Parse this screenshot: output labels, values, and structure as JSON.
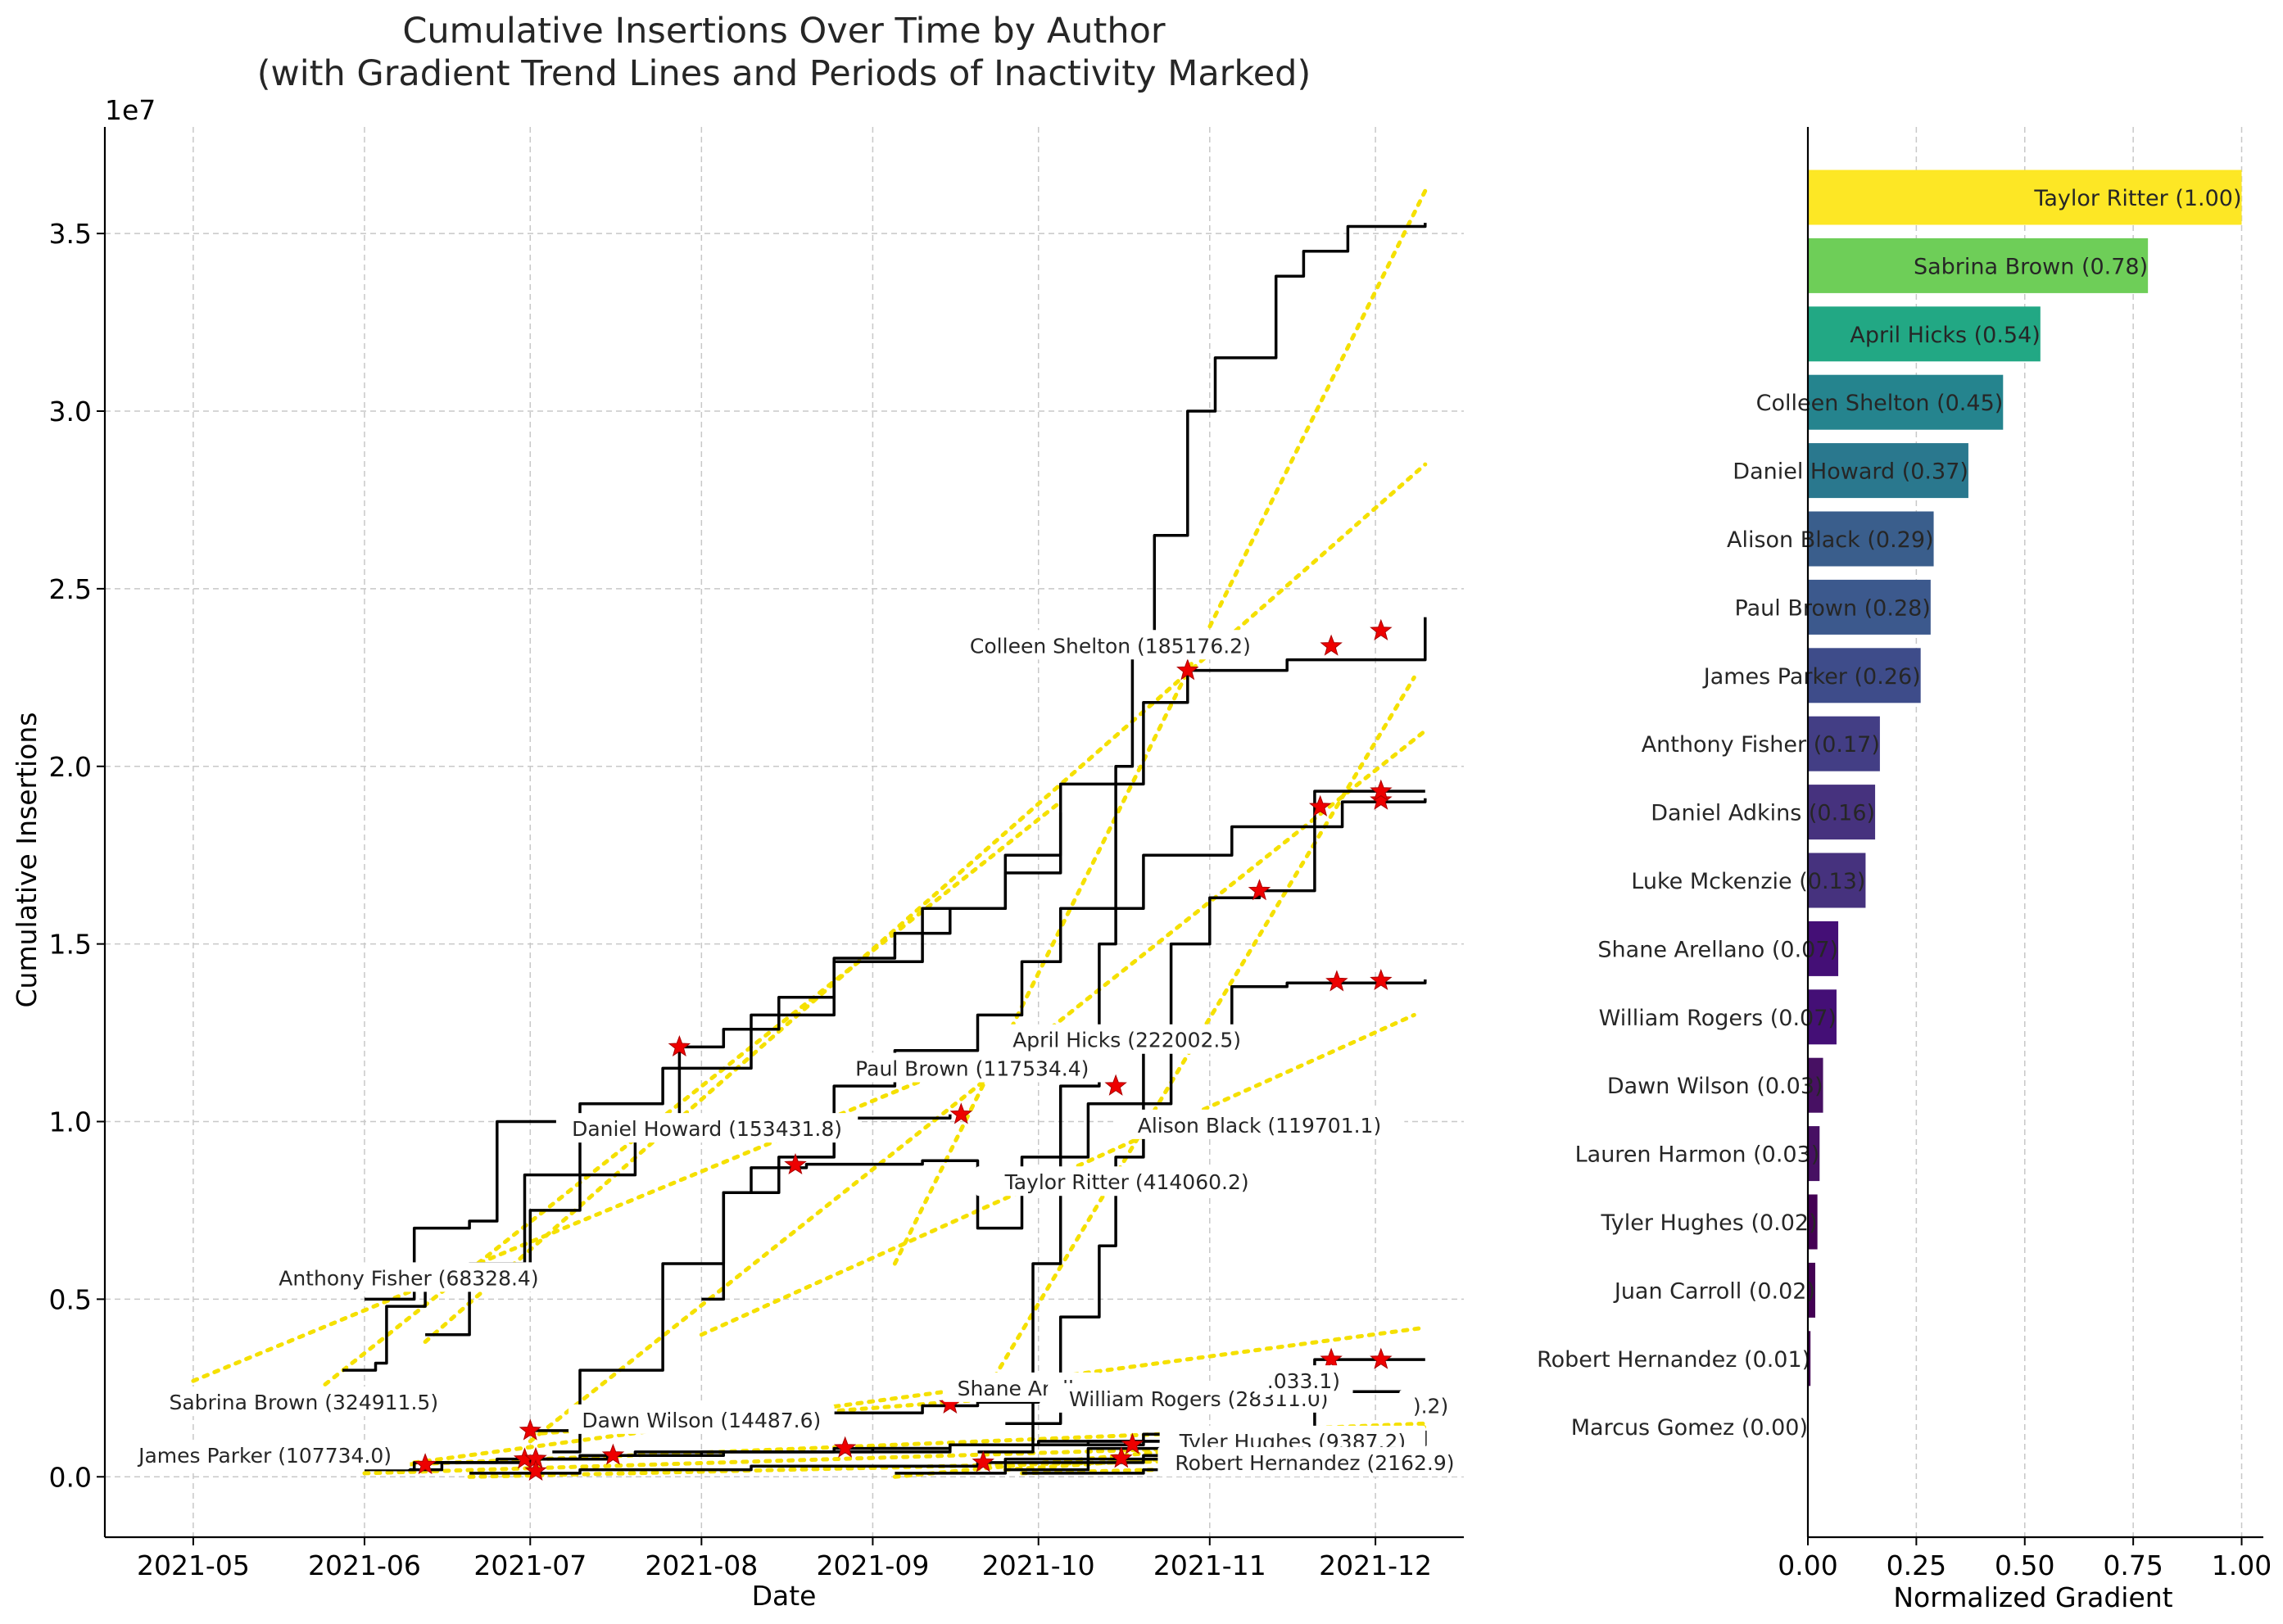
{
  "chart_data": [
    {
      "type": "line",
      "title": "Cumulative Insertions Over Time by Author",
      "subtitle": "(with Gradient Trend Lines and Periods of Inactivity Marked)",
      "xlabel": "Date",
      "ylabel": "Cumulative Insertions",
      "y_multiplier_label": "1e7",
      "xlim": [
        "2021-04-15",
        "2021-12-17"
      ],
      "ylim": [
        -0.17,
        3.8
      ],
      "x_ticks": [
        "2021-05-01",
        "2021-06-01",
        "2021-07-01",
        "2021-08-01",
        "2021-09-01",
        "2021-10-01",
        "2021-11-01",
        "2021-12-01"
      ],
      "x_tick_labels": [
        "2021-05",
        "2021-06",
        "2021-07",
        "2021-08",
        "2021-09",
        "2021-10",
        "2021-11",
        "2021-12"
      ],
      "y_ticks": [
        0.0,
        0.5,
        1.0,
        1.5,
        2.0,
        2.5,
        3.0,
        3.5
      ],
      "y_tick_labels": [
        "0.0",
        "0.5",
        "1.0",
        "1.5",
        "2.0",
        "2.5",
        "3.0",
        "3.5"
      ],
      "grid": true,
      "line_color": "#000000",
      "trend_color": "#f5e000",
      "marker_color": "#ee0000",
      "series": [
        {
          "x": [
            "2021-09-20",
            "2021-09-30",
            "2021-10-05",
            "2021-10-12",
            "2021-10-15",
            "2021-10-18",
            "2021-10-22",
            "2021-10-28",
            "2021-11-02",
            "2021-11-10",
            "2021-11-13",
            "2021-11-18",
            "2021-11-26",
            "2021-12-10"
          ],
          "y": [
            0.07,
            0.6,
            1.1,
            1.5,
            2.0,
            2.32,
            2.65,
            3.0,
            3.15,
            3.15,
            3.38,
            3.45,
            3.52,
            3.53
          ],
          "trend": {
            "x": [
              "2021-09-05",
              "2021-12-10"
            ],
            "y": [
              0.6,
              3.62
            ]
          },
          "inactive": []
        },
        {
          "x": [
            "2021-06-12",
            "2021-06-20",
            "2021-06-30",
            "2021-07-10",
            "2021-07-25",
            "2021-08-10",
            "2021-08-25",
            "2021-09-10",
            "2021-09-25",
            "2021-10-05",
            "2021-10-20",
            "2021-10-28",
            "2021-11-15",
            "2021-12-10"
          ],
          "y": [
            0.4,
            0.6,
            0.85,
            1.05,
            1.15,
            1.3,
            1.45,
            1.6,
            1.75,
            1.95,
            2.18,
            2.27,
            2.3,
            2.42
          ],
          "trend": {
            "x": [
              "2021-06-12",
              "2021-12-10"
            ],
            "y": [
              0.38,
              2.85
            ]
          },
          "inactive": [
            "2021-10-28",
            "2021-11-23",
            "2021-12-02"
          ]
        },
        {
          "x": [
            "2021-05-28",
            "2021-06-03",
            "2021-06-05",
            "2021-06-12",
            "2021-06-20",
            "2021-07-01",
            "2021-07-10",
            "2021-07-20",
            "2021-07-28",
            "2021-08-05",
            "2021-08-15",
            "2021-08-25",
            "2021-09-05",
            "2021-09-15",
            "2021-09-25",
            "2021-10-05"
          ],
          "y": [
            0.3,
            0.32,
            0.48,
            0.53,
            0.56,
            0.75,
            0.85,
            0.95,
            1.21,
            1.26,
            1.35,
            1.46,
            1.53,
            1.6,
            1.7,
            1.87
          ],
          "trend": {
            "x": [
              "2021-05-20",
              "2021-10-05"
            ],
            "y": [
              0.2,
              1.9
            ]
          },
          "inactive": [
            "2021-07-28"
          ]
        },
        {
          "x": [
            "2021-06-01",
            "2021-06-10",
            "2021-06-20",
            "2021-06-25",
            "2021-07-15",
            "2021-08-10",
            "2021-09-15"
          ],
          "y": [
            0.5,
            0.7,
            0.72,
            1.0,
            1.0,
            1.01,
            1.02
          ],
          "trend": {
            "x": [
              "2021-05-01",
              "2021-09-20"
            ],
            "y": [
              0.27,
              1.18
            ]
          },
          "inactive": [
            "2021-09-17"
          ]
        },
        {
          "x": [
            "2021-07-05",
            "2021-07-10",
            "2021-07-25",
            "2021-08-05",
            "2021-08-15",
            "2021-08-25",
            "2021-09-05",
            "2021-09-20",
            "2021-09-28",
            "2021-10-05",
            "2021-10-20",
            "2021-11-05",
            "2021-11-25",
            "2021-12-10"
          ],
          "y": [
            0.07,
            0.3,
            0.6,
            0.8,
            0.9,
            1.1,
            1.2,
            1.3,
            1.45,
            1.6,
            1.75,
            1.83,
            1.9,
            1.91
          ],
          "trend": {
            "x": [
              "2021-07-01",
              "2021-12-10"
            ],
            "y": [
              0.1,
              2.1
            ]
          },
          "inactive": [
            "2021-11-21",
            "2021-12-02"
          ]
        },
        {
          "x": [
            "2021-09-25",
            "2021-10-05",
            "2021-10-12",
            "2021-10-15",
            "2021-10-20",
            "2021-10-25",
            "2021-11-01",
            "2021-11-10",
            "2021-11-20",
            "2021-12-10"
          ],
          "y": [
            0.15,
            0.45,
            0.65,
            0.9,
            1.2,
            1.5,
            1.63,
            1.65,
            1.93,
            1.93
          ],
          "trend": {
            "x": [
              "2021-09-23",
              "2021-12-08"
            ],
            "y": [
              0.28,
              2.25
            ]
          },
          "inactive": [
            "2021-11-10",
            "2021-12-02"
          ]
        },
        {
          "x": [
            "2021-08-01",
            "2021-08-05",
            "2021-08-10",
            "2021-08-20",
            "2021-09-10",
            "2021-09-20",
            "2021-09-28",
            "2021-10-10",
            "2021-10-25",
            "2021-11-05",
            "2021-11-15",
            "2021-12-10"
          ],
          "y": [
            0.5,
            0.8,
            0.87,
            0.88,
            0.89,
            0.7,
            0.9,
            1.05,
            1.2,
            1.38,
            1.39,
            1.4
          ],
          "trend": {
            "x": [
              "2021-08-01",
              "2021-12-08"
            ],
            "y": [
              0.4,
              1.3
            ]
          },
          "inactive": [
            "2021-08-18",
            "2021-10-15",
            "2021-11-24",
            "2021-12-02"
          ]
        },
        {
          "x": [
            "2021-06-05",
            "2021-06-15",
            "2021-07-01",
            "2021-07-10",
            "2021-07-20",
            "2021-08-10",
            "2021-09-15",
            "2021-10-20",
            "2021-11-20",
            "2021-12-10"
          ],
          "y": [
            0.02,
            0.04,
            0.05,
            0.06,
            0.07,
            0.07,
            0.09,
            0.1,
            0.11,
            0.12
          ],
          "trend": {
            "x": [
              "2021-06-01",
              "2021-12-10"
            ],
            "y": [
              0.03,
              0.15
            ]
          },
          "inactive": [
            "2021-06-12"
          ]
        },
        {
          "x": [
            "2021-06-10",
            "2021-07-01",
            "2021-07-15",
            "2021-08-01",
            "2021-09-01",
            "2021-09-15",
            "2021-10-01",
            "2021-10-20",
            "2021-11-20",
            "2021-12-10"
          ],
          "y": [
            0.04,
            0.05,
            0.06,
            0.07,
            0.08,
            0.09,
            0.1,
            0.12,
            0.33,
            0.33
          ],
          "trend": {
            "x": [
              "2021-06-10",
              "2021-12-10"
            ],
            "y": [
              0.04,
              0.42
            ]
          },
          "inactive": [
            "2021-06-30",
            "2021-07-02",
            "2021-11-23",
            "2021-12-02"
          ]
        },
        {
          "x": [
            "2021-06-01",
            "2021-06-10",
            "2021-06-25",
            "2021-07-15",
            "2021-08-05",
            "2021-08-25",
            "2021-09-15",
            "2021-10-10",
            "2021-11-10",
            "2021-12-10"
          ],
          "y": [
            0.02,
            0.04,
            0.05,
            0.06,
            0.07,
            0.08,
            0.09,
            0.1,
            0.12,
            0.13
          ],
          "trend": {
            "x": [
              "2021-06-01",
              "2021-12-10"
            ],
            "y": [
              0.01,
              0.1
            ]
          },
          "inactive": [
            "2021-07-16",
            "2021-08-27"
          ]
        },
        {
          "x": [
            "2021-07-01",
            "2021-07-15",
            "2021-08-01",
            "2021-08-20",
            "2021-09-10",
            "2021-09-20",
            "2021-10-01",
            "2021-10-15",
            "2021-11-01",
            "2021-12-10"
          ],
          "y": [
            0.13,
            0.15,
            0.16,
            0.18,
            0.2,
            0.21,
            0.22,
            0.23,
            0.24,
            0.24
          ],
          "trend": {
            "x": [
              "2021-07-01",
              "2021-10-10"
            ],
            "y": [
              0.12,
              0.24
            ]
          },
          "inactive": [
            "2021-07-01",
            "2021-09-15"
          ]
        },
        {
          "x": [
            "2021-06-20",
            "2021-07-10",
            "2021-08-10",
            "2021-09-01",
            "2021-09-20",
            "2021-10-10",
            "2021-11-10",
            "2021-12-10"
          ],
          "y": [
            0.01,
            0.02,
            0.03,
            0.03,
            0.04,
            0.05,
            0.06,
            0.07
          ],
          "trend": {
            "x": [
              "2021-06-20",
              "2021-12-10"
            ],
            "y": [
              0.0,
              0.06
            ]
          },
          "inactive": [
            "2021-07-02",
            "2021-09-21"
          ]
        },
        {
          "x": [
            "2021-09-05",
            "2021-09-25",
            "2021-10-10",
            "2021-10-25",
            "2021-11-10",
            "2021-12-10"
          ],
          "y": [
            0.01,
            0.05,
            0.08,
            0.1,
            0.1,
            0.11
          ],
          "trend": {
            "x": [
              "2021-09-05",
              "2021-12-10"
            ],
            "y": [
              0.0,
              0.14
            ]
          },
          "inactive": [
            "2021-10-18"
          ]
        },
        {
          "x": [
            "2021-09-25",
            "2021-10-10",
            "2021-10-20",
            "2021-11-05",
            "2021-11-20",
            "2021-12-10"
          ],
          "y": [
            0.02,
            0.04,
            0.06,
            0.08,
            0.09,
            0.1
          ],
          "trend": {
            "x": [
              "2021-09-25",
              "2021-12-10"
            ],
            "y": [
              0.02,
              0.1
            ]
          },
          "inactive": [
            "2021-10-16"
          ]
        },
        {
          "x": [
            "2021-09-28",
            "2021-10-20",
            "2021-11-10",
            "2021-12-10"
          ],
          "y": [
            0.01,
            0.02,
            0.03,
            0.04
          ],
          "trend": {
            "x": [
              "2021-09-28",
              "2021-12-10"
            ],
            "y": [
              0.01,
              0.04
            ]
          },
          "inactive": []
        }
      ],
      "annotations": [
        {
          "text": "Colleen Shelton (185176.2)",
          "x": "2021-10-14",
          "y": 2.34
        },
        {
          "text": "April Hicks (222002.5)",
          "x": "2021-10-17",
          "y": 1.23
        },
        {
          "text": "Paul Brown (117534.4)",
          "x": "2021-09-19",
          "y": 1.15
        },
        {
          "text": "Alison Black (119701.1)",
          "x": "2021-11-10",
          "y": 0.99
        },
        {
          "text": "Daniel Howard (153431.8)",
          "x": "2021-08-02",
          "y": 0.98
        },
        {
          "text": "Taylor Ritter (414060.2)",
          "x": "2021-10-17",
          "y": 0.83
        },
        {
          "text": "Anthony Fisher (68328.4)",
          "x": "2021-06-09",
          "y": 0.56
        },
        {
          "text": "Sabrina Brown (324911.5)",
          "x": "2021-05-21",
          "y": 0.21
        },
        {
          "text": "Dawn Wilson (14487.6)",
          "x": "2021-08-01",
          "y": 0.16
        },
        {
          "text": "James Parker (107734.0)",
          "x": "2021-05-14",
          "y": 0.06
        },
        {
          "text": "Shane Arella",
          "x": "2021-09-28",
          "y": 0.25
        },
        {
          "text": "William Rogers (28311.0)",
          "x": "2021-10-30",
          "y": 0.22
        },
        {
          "text": "Tyler Hughes (9387.2)",
          "x": "2021-11-16",
          "y": 0.1
        },
        {
          "text": "Robert Hernandez (2162.9)",
          "x": "2021-11-20",
          "y": 0.04
        },
        {
          "text": ".033.1)",
          "x": "2021-11-18",
          "y": 0.27
        },
        {
          "text": ").2)",
          "x": "2021-12-11",
          "y": 0.2
        }
      ]
    },
    {
      "type": "bar",
      "orientation": "horizontal",
      "xlabel": "Normalized Gradient",
      "xlim": [
        0.0,
        1.05
      ],
      "x_ticks": [
        0.0,
        0.25,
        0.5,
        0.75,
        1.0
      ],
      "x_tick_labels": [
        "0.00",
        "0.25",
        "0.50",
        "0.75",
        "1.00"
      ],
      "grid": true,
      "categories": [
        "Taylor Ritter (1.00)",
        "Sabrina Brown (0.78)",
        "April Hicks (0.54)",
        "Colleen Shelton (0.45)",
        "Daniel Howard (0.37)",
        "Alison Black (0.29)",
        "Paul Brown (0.28)",
        "James Parker (0.26)",
        "Anthony Fisher (0.17)",
        "Daniel Adkins (0.16)",
        "Luke Mckenzie (0.13)",
        "Shane Arellano (0.07)",
        "William Rogers (0.07)",
        "Dawn Wilson (0.03)",
        "Lauren Harmon (0.03)",
        "Tyler Hughes (0.02)",
        "Juan Carroll (0.02)",
        "Robert Hernandez (0.01)",
        "Marcus Gomez (0.00)"
      ],
      "values": [
        1.0,
        0.784,
        0.536,
        0.45,
        0.37,
        0.29,
        0.283,
        0.26,
        0.166,
        0.155,
        0.133,
        0.07,
        0.066,
        0.035,
        0.027,
        0.022,
        0.017,
        0.006,
        0.0
      ],
      "colors": [
        "#fde725",
        "#6ece58",
        "#22a884",
        "#25848e",
        "#2a788e",
        "#3a5e8c",
        "#3c598d",
        "#3e4c8a",
        "#433e85",
        "#46327e",
        "#46327e",
        "#440f76",
        "#440f76",
        "#471063",
        "#471063",
        "#440154",
        "#440154",
        "#440154",
        "#440154"
      ]
    }
  ]
}
